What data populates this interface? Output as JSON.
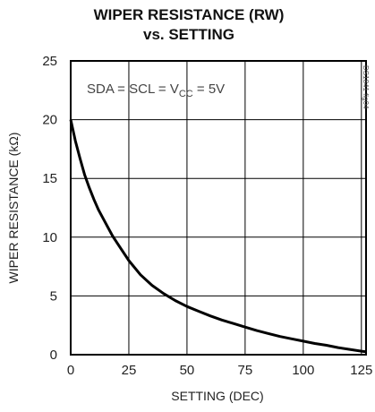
{
  "chart_data": {
    "type": "line",
    "title_line1": "WIPER RESISTANCE (RW)",
    "title_line2": "vs. SETTING",
    "xlabel": "SETTING (DEC)",
    "ylabel": "WIPER RESISTANCE (kΩ)",
    "xlim": [
      0,
      127
    ],
    "ylim": [
      0,
      25
    ],
    "xticks": [
      0,
      25,
      50,
      75,
      100,
      125
    ],
    "yticks": [
      0,
      5,
      10,
      15,
      20,
      25
    ],
    "grid": true,
    "annotation": {
      "prefix": "SDA = SCL = V",
      "subscript": "CC",
      "suffix": " = 5V"
    },
    "watermark": "DS1841 fig04",
    "series": [
      {
        "x": [
          0,
          2,
          4,
          6,
          8,
          10,
          12,
          15,
          18,
          20,
          25,
          30,
          35,
          40,
          45,
          50,
          55,
          60,
          65,
          70,
          75,
          80,
          85,
          90,
          95,
          100,
          105,
          110,
          115,
          120,
          125,
          127
        ],
        "y": [
          20.0,
          18.2,
          16.7,
          15.3,
          14.2,
          13.2,
          12.3,
          11.2,
          10.1,
          9.5,
          8.0,
          6.8,
          5.9,
          5.2,
          4.6,
          4.1,
          3.7,
          3.3,
          2.95,
          2.65,
          2.35,
          2.05,
          1.8,
          1.55,
          1.35,
          1.15,
          0.95,
          0.8,
          0.6,
          0.45,
          0.3,
          0.25
        ]
      }
    ]
  }
}
